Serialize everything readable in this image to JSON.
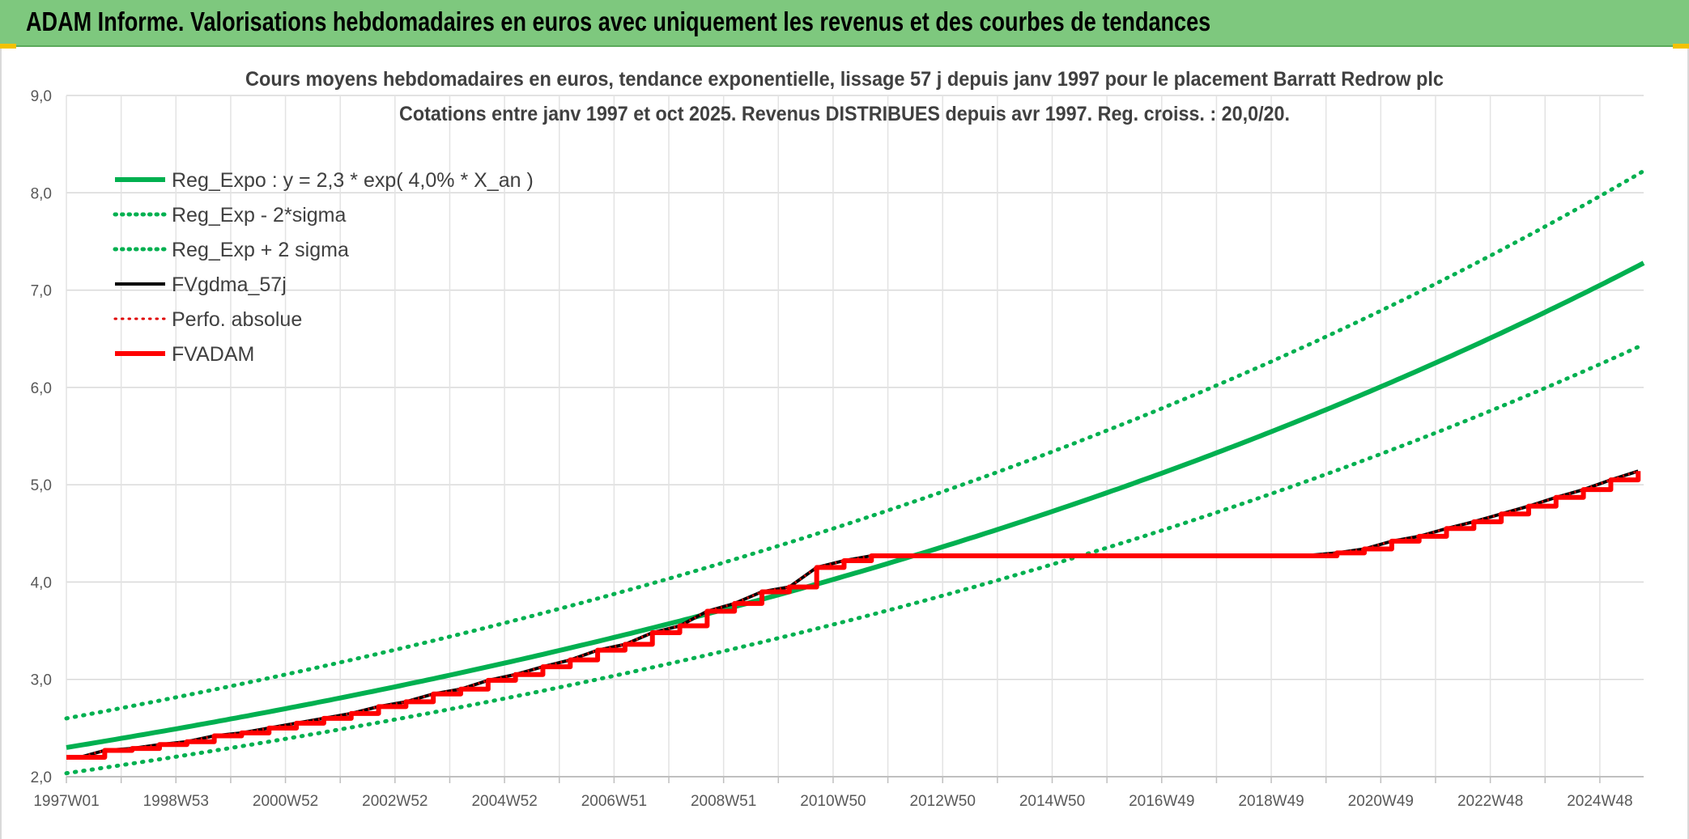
{
  "banner": {
    "title": "ADAM Informe. Valorisations hebdomadaires en euros avec uniquement les revenus et des courbes de tendances",
    "color": "#7ec87e"
  },
  "chart_data": {
    "type": "line",
    "title_line1": "Cours moyens hebdomadaires en euros, tendance exponentielle, lissage 57 j depuis janv 1997 pour le placement Barratt Redrow plc",
    "title_line2": "Cotations entre janv 1997 et oct 2025. Revenus DISTRIBUES depuis avr 1997. Reg. croiss. : 20,0/20.",
    "ylim": [
      2.0,
      9.0
    ],
    "yticks": [
      "2,0",
      "3,0",
      "4,0",
      "5,0",
      "6,0",
      "7,0",
      "8,0",
      "9,0"
    ],
    "xlim": [
      1997.0,
      2025.8
    ],
    "xtick_labels": [
      "1997W01",
      "1998W53",
      "2000W52",
      "2002W52",
      "2004W52",
      "2006W51",
      "2008W51",
      "2010W50",
      "2012W50",
      "2014W50",
      "2016W49",
      "2018W49",
      "2020W49",
      "2022W48",
      "2024W48"
    ],
    "xtick_positions": [
      1997.0,
      1999.0,
      2001.0,
      2003.0,
      2005.0,
      2007.0,
      2009.0,
      2011.0,
      2013.0,
      2015.0,
      2017.0,
      2019.0,
      2021.0,
      2023.0,
      2025.0
    ],
    "grid": true,
    "legend_position": "top-left",
    "regression": {
      "a": 2.3,
      "rate": 0.04,
      "start_year": 1997.0
    },
    "series": [
      {
        "name": "Reg_Expo : y = 2,3 * exp( 4,0% *  X_an )",
        "color": "#00b050",
        "style": "solid",
        "width": 6
      },
      {
        "name": "Reg_Exp - 2*sigma",
        "color": "#00b050",
        "style": "dotted",
        "width": 5
      },
      {
        "name": "Reg_Exp + 2 sigma",
        "color": "#00b050",
        "style": "dotted",
        "width": 5
      },
      {
        "name": "FVgdma_57j",
        "color": "#000000",
        "style": "solid",
        "width": 4
      },
      {
        "name": "Perfo. absolue",
        "color": "#e00000",
        "style": "dotted",
        "width": 3
      },
      {
        "name": "FVADAM",
        "color": "#ff0000",
        "style": "solid",
        "width": 6
      }
    ],
    "band_factors": {
      "lower": 0.885,
      "upper": 1.13
    },
    "fvadam_points": [
      [
        1997.0,
        2.2
      ],
      [
        1997.25,
        2.2
      ],
      [
        1997.7,
        2.27
      ],
      [
        1998.2,
        2.29
      ],
      [
        1998.7,
        2.33
      ],
      [
        1999.2,
        2.36
      ],
      [
        1999.7,
        2.42
      ],
      [
        2000.2,
        2.45
      ],
      [
        2000.7,
        2.5
      ],
      [
        2001.2,
        2.55
      ],
      [
        2001.7,
        2.6
      ],
      [
        2002.2,
        2.65
      ],
      [
        2002.7,
        2.72
      ],
      [
        2003.2,
        2.77
      ],
      [
        2003.7,
        2.85
      ],
      [
        2004.2,
        2.9
      ],
      [
        2004.7,
        2.99
      ],
      [
        2005.2,
        3.05
      ],
      [
        2005.7,
        3.13
      ],
      [
        2006.2,
        3.2
      ],
      [
        2006.7,
        3.3
      ],
      [
        2007.2,
        3.36
      ],
      [
        2007.7,
        3.48
      ],
      [
        2008.2,
        3.55
      ],
      [
        2008.7,
        3.7
      ],
      [
        2009.2,
        3.78
      ],
      [
        2009.7,
        3.9
      ],
      [
        2010.2,
        3.95
      ],
      [
        2010.7,
        4.15
      ],
      [
        2011.2,
        4.22
      ],
      [
        2011.7,
        4.27
      ],
      [
        2019.6,
        4.27
      ],
      [
        2020.2,
        4.3
      ],
      [
        2020.7,
        4.34
      ],
      [
        2021.2,
        4.42
      ],
      [
        2021.7,
        4.47
      ],
      [
        2022.2,
        4.55
      ],
      [
        2022.7,
        4.62
      ],
      [
        2023.2,
        4.7
      ],
      [
        2023.7,
        4.78
      ],
      [
        2024.2,
        4.87
      ],
      [
        2024.7,
        4.95
      ],
      [
        2025.2,
        5.05
      ],
      [
        2025.7,
        5.14
      ]
    ]
  }
}
